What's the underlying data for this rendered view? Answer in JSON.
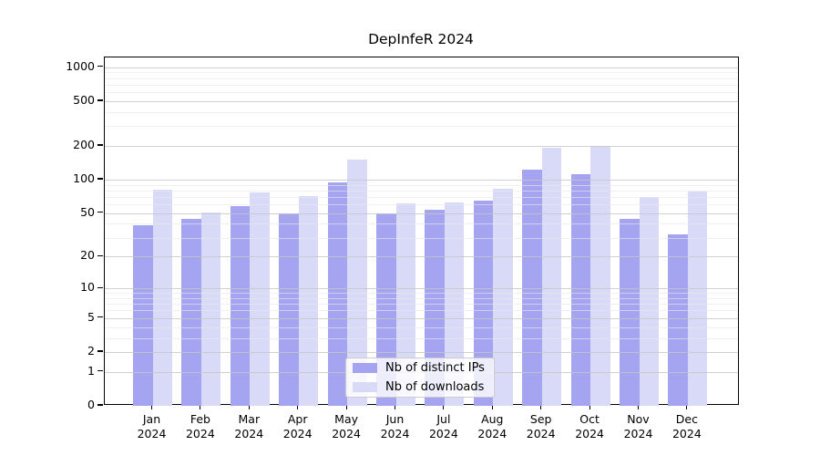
{
  "chart_data": {
    "type": "bar",
    "title": "DepInfeR 2024",
    "categories": [
      "Jan",
      "Feb",
      "Mar",
      "Apr",
      "May",
      "Jun",
      "Jul",
      "Aug",
      "Sep",
      "Oct",
      "Nov",
      "Dec"
    ],
    "year": "2024",
    "series": [
      {
        "name": "Nb of distinct IPs",
        "color": "#a4a4f1",
        "values": [
          39,
          44,
          58,
          50,
          95,
          50,
          54,
          65,
          123,
          112,
          44,
          32
        ]
      },
      {
        "name": "Nb of downloads",
        "color": "#d9d9f8",
        "values": [
          82,
          51,
          77,
          71,
          152,
          61,
          63,
          83,
          193,
          202,
          70,
          78
        ]
      }
    ],
    "yticks": [
      0,
      1,
      2,
      5,
      10,
      20,
      50,
      100,
      200,
      500,
      1000
    ],
    "minor_gridlines": [
      3,
      4,
      6,
      7,
      8,
      9,
      30,
      40,
      60,
      70,
      80,
      90,
      300,
      400,
      600,
      700,
      800,
      900
    ],
    "yscale": "log1p",
    "ylim": [
      0,
      1235
    ],
    "xlabel": "",
    "ylabel": "",
    "grid": true,
    "legend_position": "bottom-center"
  }
}
